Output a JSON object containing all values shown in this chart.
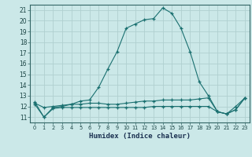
{
  "title": "",
  "xlabel": "Humidex (Indice chaleur)",
  "bg_color": "#cbe8e8",
  "grid_color": "#b0d0d0",
  "line_color": "#1a7070",
  "xlim": [
    -0.5,
    23.5
  ],
  "ylim": [
    10.5,
    21.5
  ],
  "yticks": [
    11,
    12,
    13,
    14,
    15,
    16,
    17,
    18,
    19,
    20,
    21
  ],
  "xticks": [
    0,
    1,
    2,
    3,
    4,
    5,
    6,
    7,
    8,
    9,
    10,
    11,
    12,
    13,
    14,
    15,
    16,
    17,
    18,
    19,
    20,
    21,
    22,
    23
  ],
  "line1_x": [
    0,
    1,
    2,
    3,
    4,
    5,
    6,
    7,
    8,
    9,
    10,
    11,
    12,
    13,
    14,
    15,
    16,
    17,
    18,
    19,
    20,
    21,
    22,
    23
  ],
  "line1_y": [
    12.4,
    11.0,
    11.9,
    12.0,
    12.2,
    12.5,
    12.6,
    13.8,
    15.5,
    17.1,
    19.3,
    19.7,
    20.1,
    20.2,
    21.2,
    20.7,
    19.3,
    17.1,
    14.3,
    13.0,
    11.5,
    11.3,
    11.7,
    12.8
  ],
  "line2_x": [
    0,
    1,
    2,
    3,
    4,
    5,
    6,
    7,
    8,
    9,
    10,
    11,
    12,
    13,
    14,
    15,
    16,
    17,
    18,
    19,
    20,
    21,
    22,
    23
  ],
  "line2_y": [
    12.3,
    11.9,
    12.0,
    12.1,
    12.2,
    12.2,
    12.3,
    12.3,
    12.2,
    12.2,
    12.3,
    12.4,
    12.5,
    12.5,
    12.6,
    12.6,
    12.6,
    12.6,
    12.7,
    12.8,
    11.5,
    11.3,
    12.0,
    12.8
  ],
  "line3_x": [
    0,
    1,
    2,
    3,
    4,
    5,
    6,
    7,
    8,
    9,
    10,
    11,
    12,
    13,
    14,
    15,
    16,
    17,
    18,
    19,
    20,
    21,
    22,
    23
  ],
  "line3_y": [
    12.2,
    11.0,
    11.8,
    11.9,
    11.9,
    11.9,
    11.9,
    11.9,
    11.9,
    11.9,
    11.9,
    11.9,
    11.9,
    12.0,
    12.0,
    12.0,
    12.0,
    12.0,
    12.0,
    12.0,
    11.5,
    11.3,
    11.7,
    12.8
  ]
}
